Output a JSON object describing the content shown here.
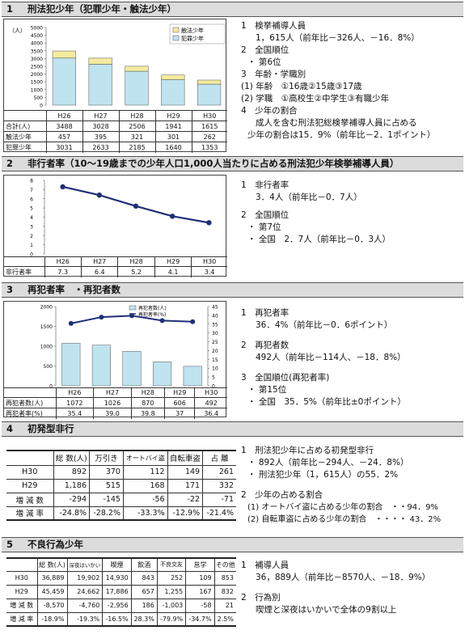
{
  "s1": {
    "num": "1",
    "title": "刑法犯少年（犯罪少年・触法少年）",
    "chart": {
      "yunit": "（人）",
      "yticks": [
        "0",
        "500",
        "1000",
        "1500",
        "2000",
        "2500",
        "3000",
        "3500",
        "4000",
        "4500",
        "5000"
      ],
      "legend": [
        "触法少年",
        "犯罪少年"
      ]
    },
    "table": {
      "years": [
        "H26",
        "H27",
        "H28",
        "H29",
        "H30"
      ],
      "rows": [
        {
          "label": "合計(人)",
          "values": [
            "3488",
            "3028",
            "2506",
            "1941",
            "1615"
          ]
        },
        {
          "label": "触法少年",
          "values": [
            "457",
            "395",
            "321",
            "301",
            "262"
          ]
        },
        {
          "label": "犯罪少年",
          "values": [
            "3031",
            "2633",
            "2185",
            "1640",
            "1353"
          ]
        }
      ]
    },
    "lines": [
      "1　検挙補導人員",
      "1，615人（前年比－326人、－16．8%）",
      "2　全国順位",
      "・ 第6位",
      "3　年齢・学職別",
      "(1) 年齢　①16歳②15歳③17歳",
      "(2) 学職　①高校生②中学生③有職少年",
      "4　少年の割合",
      "成人を含む刑法犯総検挙補導人員に占める",
      "少年の割合は15．9%（前年比－2．1ポイント）"
    ]
  },
  "s2": {
    "num": "2",
    "title": "非行者率（10～19歳までの少年人口1,000人当たりに占める刑法犯少年検挙補導人員）",
    "chart": {
      "yticks": [
        "0",
        "1",
        "2",
        "3",
        "4",
        "5",
        "6",
        "7",
        "8"
      ]
    },
    "table": {
      "label": "非行者率",
      "years": [
        "H26",
        "H27",
        "H28",
        "H29",
        "H30"
      ],
      "values": [
        "7.3",
        "6.4",
        "5.2",
        "4.1",
        "3.4"
      ]
    },
    "lines": [
      "1　非行者率",
      "3．4人（前年比－0．7人）",
      "2　全国順位",
      "・ 第7位",
      "・ 全国　2．7人（前年比－0．3人）"
    ]
  },
  "s3": {
    "num": "3",
    "title": "再犯者率　・再犯者数",
    "chart": {
      "yleft": [
        "0",
        "500",
        "1000",
        "1500",
        "2000"
      ],
      "yright": [
        "0",
        "5",
        "10",
        "15",
        "20",
        "25",
        "30",
        "35",
        "40",
        "45"
      ],
      "legend": [
        "再犯者数(人)",
        "再犯者率(%)"
      ]
    },
    "table": {
      "years": [
        "H26",
        "H27",
        "H28",
        "H29",
        "H30"
      ],
      "rows": [
        {
          "label": "再犯者数(人)",
          "values": [
            "1072",
            "1026",
            "870",
            "606",
            "492"
          ]
        },
        {
          "label": "再犯者率(%)",
          "values": [
            "35.4",
            "39.0",
            "39.8",
            "37",
            "36.4"
          ]
        }
      ]
    },
    "lines": [
      "1　再犯者率",
      "36．4%（前年比－0．6ポイント）",
      "2　再犯者数",
      "492人（前年比－114人、－18．8%）",
      "3　全国順位(再犯者率)",
      "・ 第15位",
      "・ 全国　35．5%（前年比±0ポイント）"
    ]
  },
  "s4": {
    "num": "4",
    "title": "初発型非行",
    "table": {
      "headers": [
        "総 数(人)",
        "万引き",
        "オートバイ盗",
        "自転車盗",
        "占 離"
      ],
      "rows": [
        {
          "label": "H30",
          "values": [
            "892",
            "370",
            "112",
            "149",
            "261"
          ]
        },
        {
          "label": "H29",
          "values": [
            "1,186",
            "515",
            "168",
            "171",
            "332"
          ]
        },
        {
          "label": "増 減 数",
          "values": [
            "-294",
            "-145",
            "-56",
            "-22",
            "-71"
          ]
        },
        {
          "label": "増 減 率",
          "values": [
            "-24.8%",
            "-28.2%",
            "-33.3%",
            "-12.9%",
            "-21.4%"
          ]
        }
      ]
    },
    "lines": [
      "1　刑法犯少年に占める初発型非行",
      "・ 892人（前年比－294人、－24．8%）",
      "・ 刑法犯少年（1，615人）の55．2%",
      "2　少年の占める割合",
      "(1) オートバイ盗に占める少年の割合　・・94．9%",
      "(2) 自転車盗に占める少年の割合　・・・・ 43．2%"
    ]
  },
  "s5": {
    "num": "5",
    "title": "不良行為少年",
    "table": {
      "headers": [
        "総 数(人)",
        "深夜はいかい",
        "喫煙",
        "飲酒",
        "不良交友",
        "怠学",
        "その他"
      ],
      "rows": [
        {
          "label": "H30",
          "values": [
            "36,889",
            "19,902",
            "14,930",
            "843",
            "252",
            "109",
            "853"
          ]
        },
        {
          "label": "H29",
          "values": [
            "45,459",
            "24,662",
            "17,886",
            "657",
            "1,255",
            "167",
            "832"
          ]
        },
        {
          "label": "増 減 数",
          "values": [
            "-8,570",
            "-4,760",
            "-2,956",
            "186",
            "-1,003",
            "-58",
            "21"
          ]
        },
        {
          "label": "増 減 率",
          "values": [
            "-18.9%",
            "-19.3%",
            "-16.5%",
            "28.3%",
            "-79.9%",
            "-34.7%",
            "2.5%"
          ]
        }
      ]
    },
    "lines": [
      "1　補導人員",
      "36，889人（前年比－8570人、－18．9%）",
      "2　行為別",
      "喫煙と深夜はいかいで全体の9割以上"
    ]
  },
  "chart_data": [
    {
      "type": "bar",
      "stacked": true,
      "categories": [
        "H26",
        "H27",
        "H28",
        "H29",
        "H30"
      ],
      "series": [
        {
          "name": "犯罪少年",
          "values": [
            3031,
            2633,
            2185,
            1640,
            1353
          ]
        },
        {
          "name": "触法少年",
          "values": [
            457,
            395,
            321,
            301,
            262
          ]
        }
      ],
      "ylim": [
        0,
        5000
      ],
      "colors": {
        "犯罪少年": "#bfe3ef",
        "触法少年": "#f3eb9e"
      }
    },
    {
      "type": "line",
      "categories": [
        "H26",
        "H27",
        "H28",
        "H29",
        "H30"
      ],
      "series": [
        {
          "values": [
            7.3,
            6.4,
            5.2,
            4.1,
            3.4
          ]
        }
      ],
      "ylim": [
        0,
        8
      ],
      "colors": {
        "line": "#1f2f78"
      }
    },
    {
      "type": "bar",
      "categories": [
        "H26",
        "H27",
        "H28",
        "H29",
        "H30"
      ],
      "series": [
        {
          "name": "再犯者数(人)",
          "values": [
            1072,
            1026,
            870,
            606,
            492
          ],
          "axis": "left"
        },
        {
          "name": "再犯者率(%)",
          "values": [
            35.4,
            39.0,
            39.8,
            37,
            36.4
          ],
          "axis": "right",
          "type": "line"
        }
      ],
      "ylim": [
        0,
        2000
      ],
      "y2lim": [
        0,
        45
      ],
      "colors": {
        "bar": "#bfe3ef",
        "line": "#1f2f78"
      }
    }
  ]
}
